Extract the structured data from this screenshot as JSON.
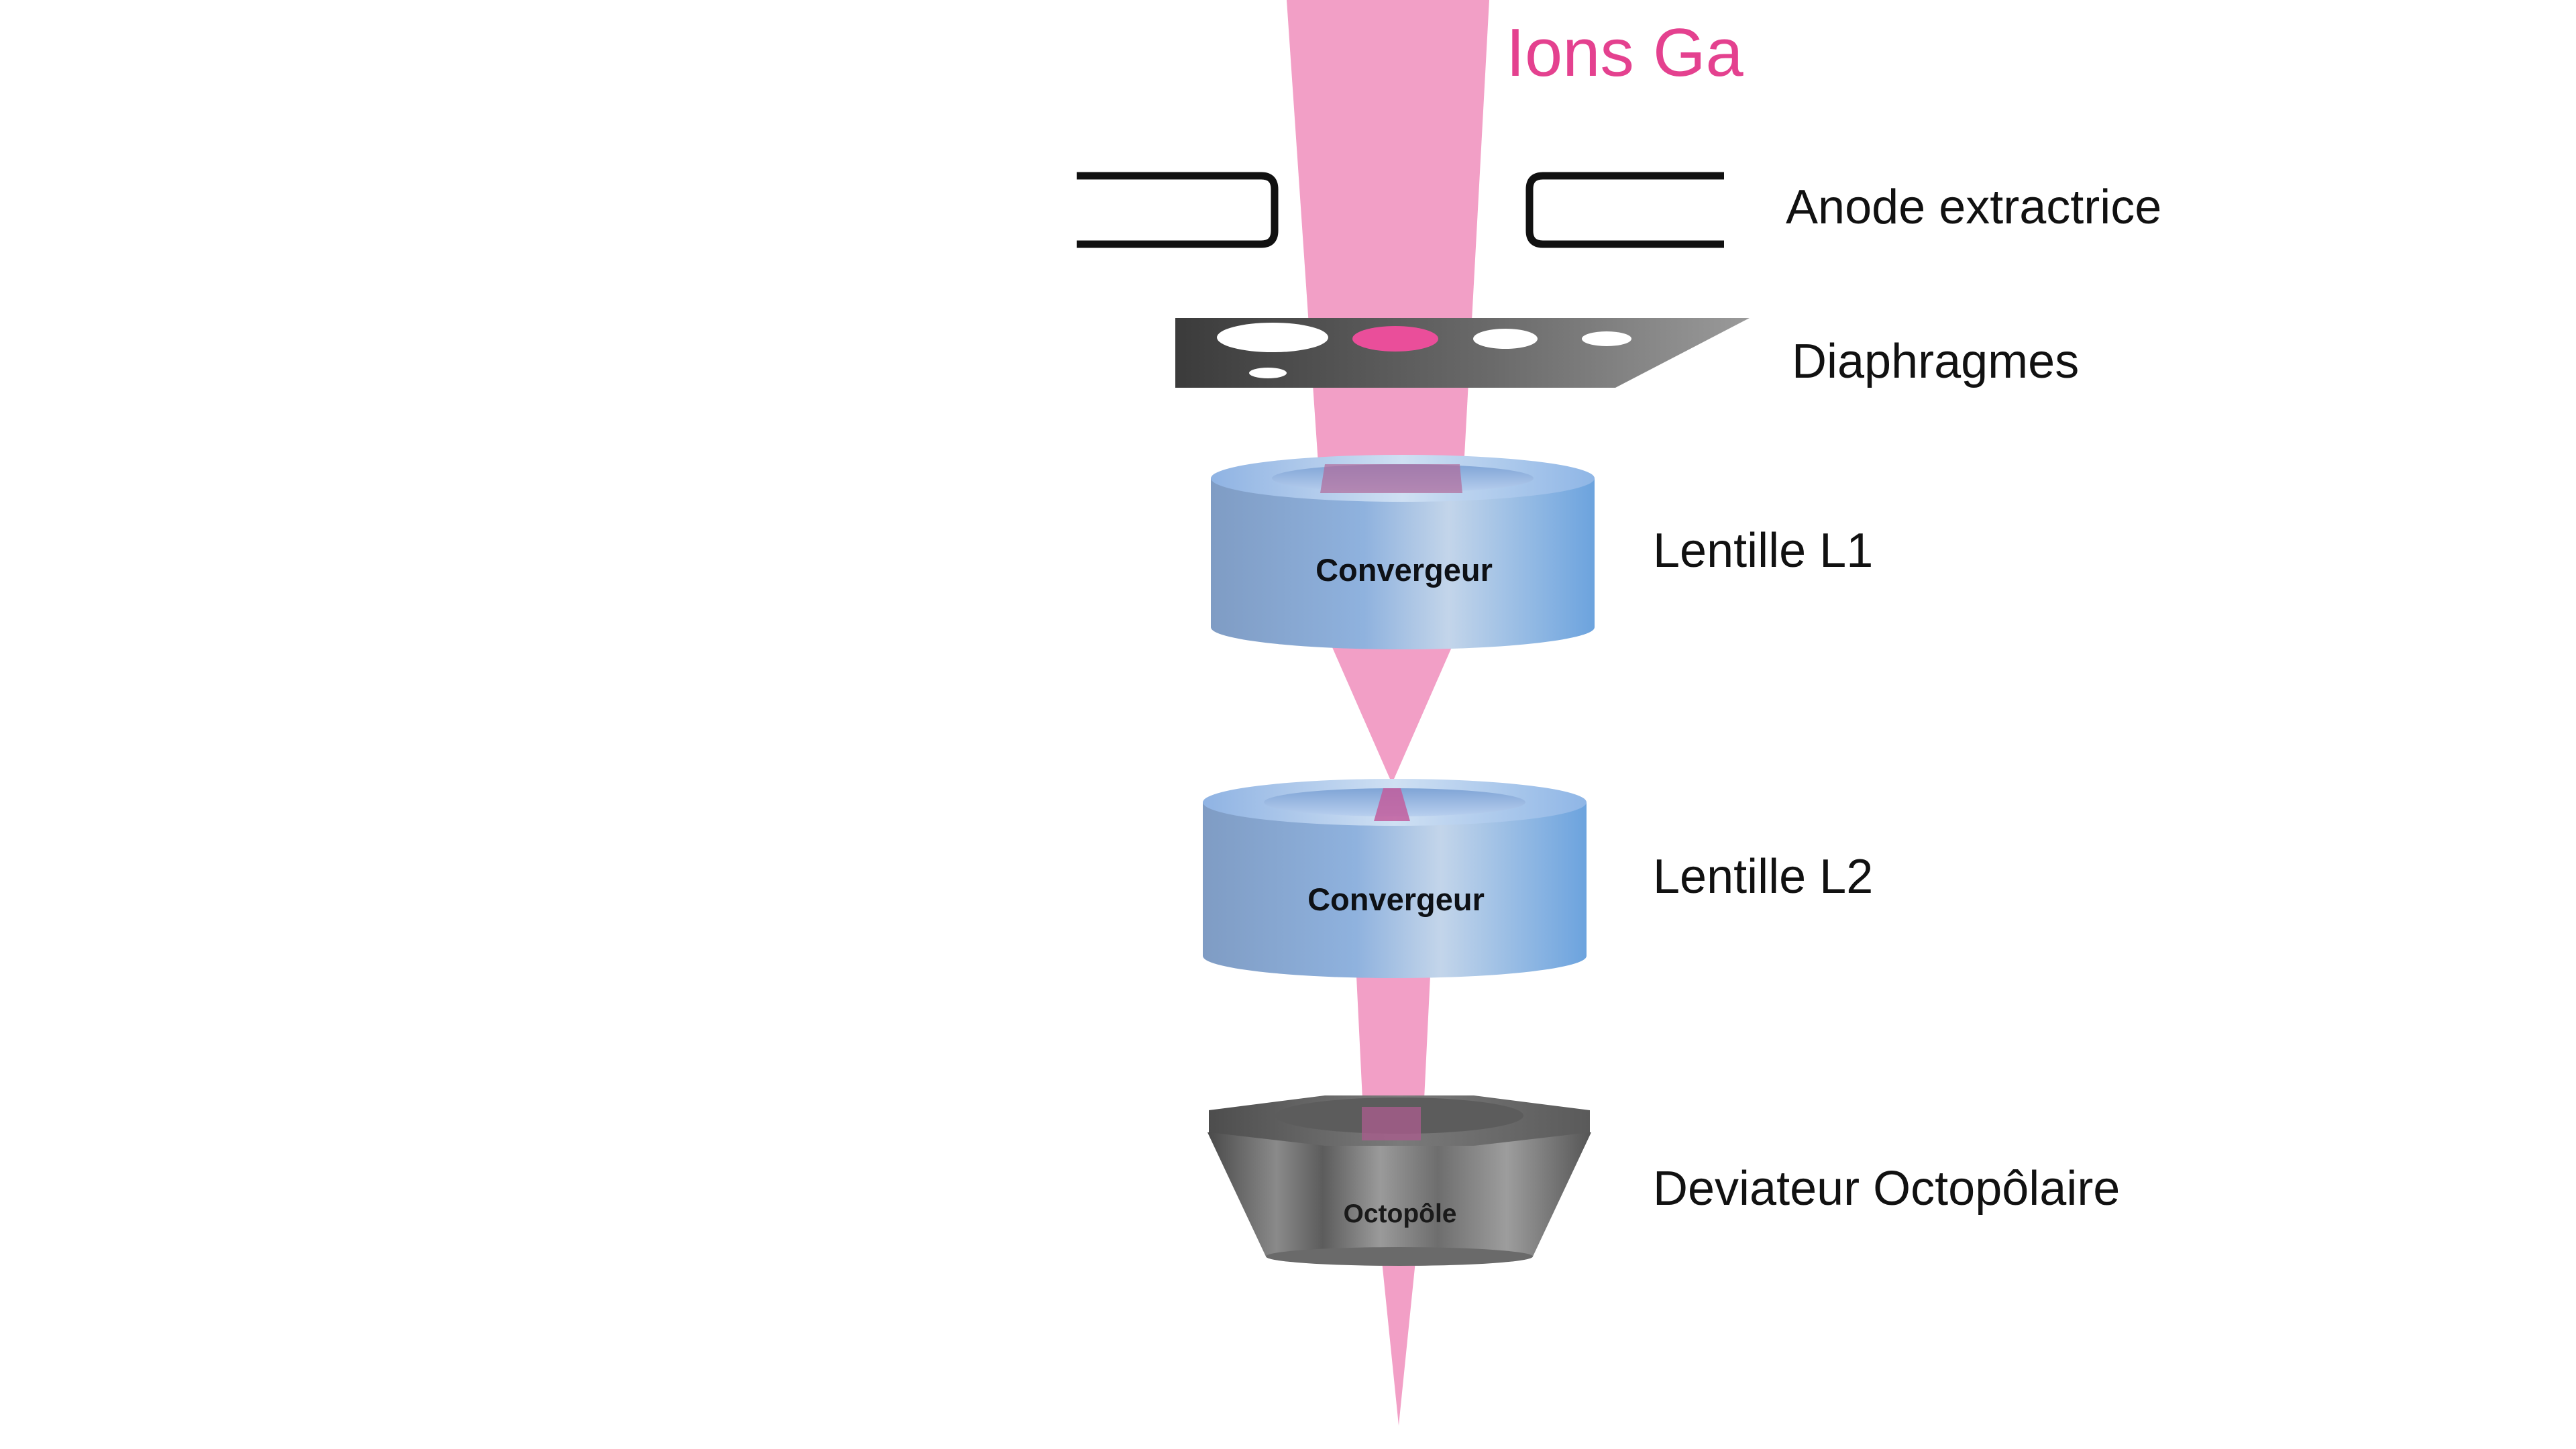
{
  "title": "Ions Ga",
  "colors": {
    "beam": "#f29fc6",
    "beam_core": "#ea4e9a",
    "title": "#e4418f",
    "lens_dark": "#7f9cc4",
    "lens_light": "#c3d5ea",
    "lens_blue": "#6ca3de",
    "metal_dark": "#3a3a3a",
    "metal_light": "#8c8c8c",
    "outline": "#111111"
  },
  "components": {
    "anode": {
      "label": "Anode extractrice"
    },
    "diaphragms": {
      "label": "Diaphragmes"
    },
    "lens1": {
      "label": "Lentille L1",
      "inner_label": "Convergeur"
    },
    "lens2": {
      "label": "Lentille L2",
      "inner_label": "Convergeur"
    },
    "deflector": {
      "label": "Deviateur Octopôlaire",
      "inner_label": "Octopôle"
    }
  }
}
